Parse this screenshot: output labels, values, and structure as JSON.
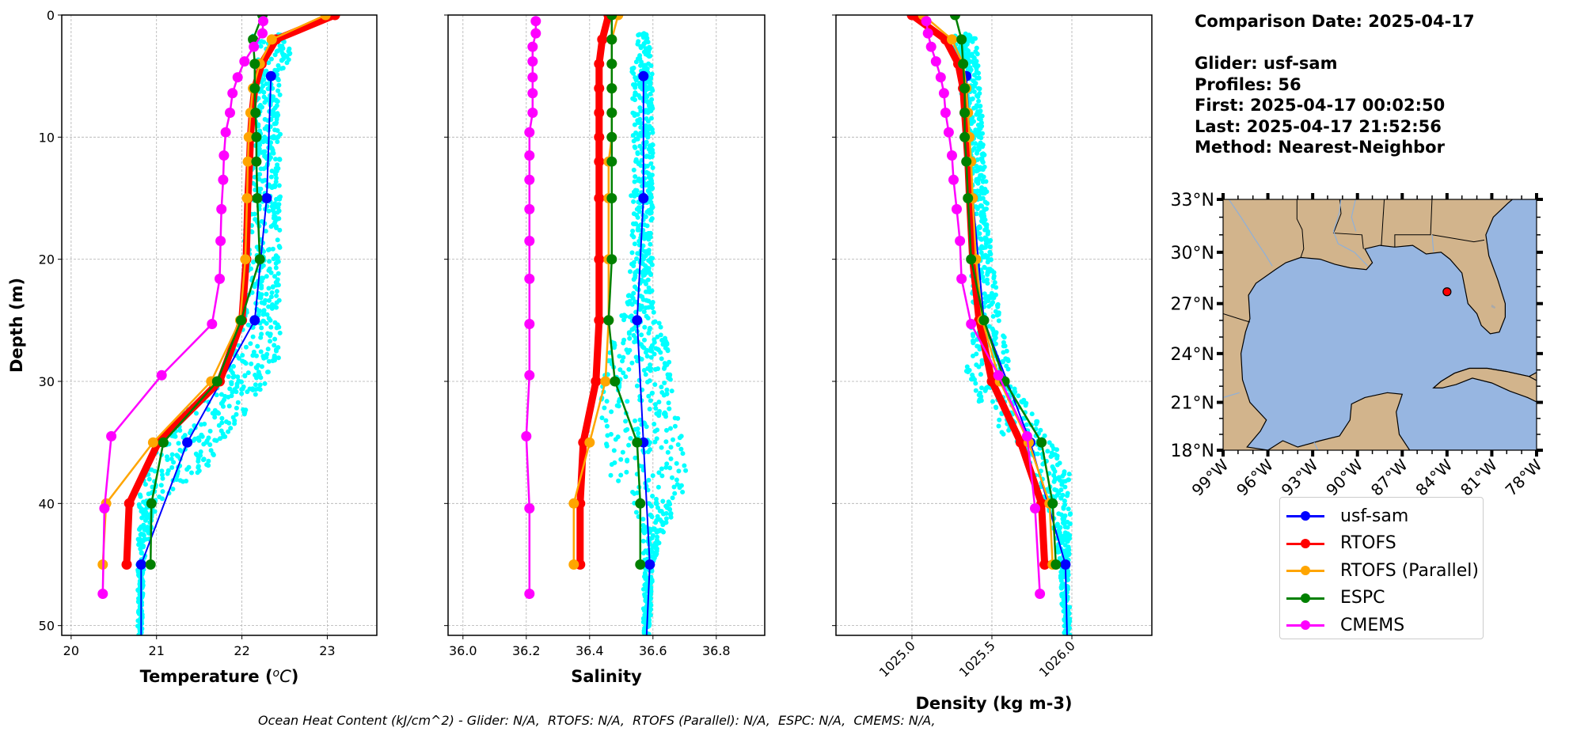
{
  "info": {
    "comparison_date": "Comparison Date: 2025-04-17",
    "glider": "Glider: usf-sam",
    "profiles": "Profiles: 56",
    "first": "First: 2025-04-17 00:02:50",
    "last": "Last: 2025-04-17 21:52:56",
    "method": "Method: Nearest-Neighbor"
  },
  "ohc_text": "Ocean Heat Content (kJ/cm^2) - Glider: N/A,  RTOFS: N/A,  RTOFS (Parallel): N/A,  ESPC: N/A,  CMEMS: N/A,",
  "legend": [
    {
      "name": "usf-sam",
      "color": "#0000ff"
    },
    {
      "name": "RTOFS",
      "color": "#ff0000"
    },
    {
      "name": "RTOFS (Parallel)",
      "color": "#ffa500"
    },
    {
      "name": "ESPC",
      "color": "#008000"
    },
    {
      "name": "CMEMS",
      "color": "#ff00ff"
    }
  ],
  "colors": {
    "glider_scatter": "#00ffff",
    "land": "#d2b48c",
    "ocean": "#97b6e1",
    "glider_location": "#ff0000"
  },
  "chart_data": [
    {
      "type": "line",
      "title": "",
      "xlabel": "Temperature (°C)",
      "ylabel": "Depth (m)",
      "xlim": [
        19.89,
        23.58
      ],
      "ylim": [
        50.8,
        0
      ],
      "xticks": [
        20,
        21,
        22,
        23
      ],
      "xtick_labels": [
        "20",
        "21",
        "22",
        "23"
      ],
      "yticks": [
        0,
        10,
        20,
        30,
        40,
        50
      ],
      "ytick_labels": [
        "0",
        "10",
        "20",
        "30",
        "40",
        "50"
      ],
      "grid": true,
      "model_depths": [
        0,
        2,
        4,
        6,
        8,
        10,
        12,
        15,
        20,
        25,
        30,
        35,
        40,
        45
      ],
      "glider_depths": [
        5,
        15,
        25,
        35,
        45,
        50.8
      ],
      "cmems_depths": [
        0.5,
        1.5,
        2.6,
        3.8,
        5.1,
        6.4,
        8.0,
        9.6,
        11.5,
        13.5,
        15.9,
        18.5,
        21.6,
        25.3,
        29.5,
        34.5,
        40.4,
        47.4
      ],
      "series": [
        {
          "name": "usf-sam",
          "depths": "glider",
          "values": [
            22.34,
            22.29,
            22.15,
            21.36,
            20.82,
            20.82
          ],
          "markers": [
            true,
            true,
            true,
            true,
            true,
            false
          ]
        },
        {
          "name": "RTOFS",
          "depths": "model",
          "values": [
            23.09,
            22.4,
            22.23,
            22.15,
            22.12,
            22.1,
            22.09,
            22.07,
            22.05,
            22.0,
            21.74,
            21.02,
            20.68,
            20.65
          ]
        },
        {
          "name": "RTOFS (Parallel)",
          "depths": "model",
          "values": [
            22.98,
            22.35,
            22.21,
            22.13,
            22.1,
            22.08,
            22.07,
            22.06,
            22.04,
            21.98,
            21.64,
            20.96,
            20.41,
            20.37
          ]
        },
        {
          "name": "ESPC",
          "depths": "model",
          "values": [
            22.24,
            22.13,
            22.15,
            22.15,
            22.16,
            22.17,
            22.17,
            22.18,
            22.21,
            21.99,
            21.71,
            21.08,
            20.94,
            20.93
          ]
        },
        {
          "name": "CMEMS",
          "depths": "cmems",
          "values": [
            22.25,
            22.24,
            22.14,
            22.03,
            21.95,
            21.89,
            21.86,
            21.81,
            21.79,
            21.78,
            21.76,
            21.75,
            21.74,
            21.65,
            21.06,
            20.47,
            20.39,
            20.37
          ]
        }
      ],
      "scatter_envelope": {
        "depths": [
          1.5,
          3,
          5,
          10,
          20,
          25,
          28,
          30,
          32,
          35,
          37,
          40,
          45,
          50.8
        ],
        "min": [
          22.1,
          22.15,
          22.15,
          22.15,
          22.0,
          22.0,
          21.9,
          21.7,
          21.4,
          21.0,
          20.85,
          20.78,
          20.78,
          20.78
        ],
        "max": [
          22.7,
          22.6,
          22.45,
          22.45,
          22.45,
          22.45,
          22.45,
          22.3,
          22.1,
          21.8,
          21.6,
          21.0,
          20.85,
          20.83
        ]
      }
    },
    {
      "type": "line",
      "title": "",
      "xlabel": "Salinity",
      "ylabel": "",
      "xlim": [
        35.953,
        36.953
      ],
      "ylim": [
        50.8,
        0
      ],
      "xticks": [
        36.0,
        36.2,
        36.4,
        36.6,
        36.8
      ],
      "xtick_labels": [
        "36.0",
        "36.2",
        "36.4",
        "36.6",
        "36.8"
      ],
      "yticks": [
        0,
        10,
        20,
        30,
        40,
        50
      ],
      "grid": true,
      "series": [
        {
          "name": "usf-sam",
          "depths": "glider",
          "values": [
            36.57,
            36.57,
            36.55,
            36.57,
            36.59,
            36.58
          ],
          "markers": [
            true,
            true,
            true,
            true,
            true,
            false
          ]
        },
        {
          "name": "RTOFS",
          "depths": "model",
          "values": [
            36.46,
            36.44,
            36.43,
            36.43,
            36.43,
            36.43,
            36.43,
            36.43,
            36.43,
            36.43,
            36.42,
            36.38,
            36.37,
            36.37
          ]
        },
        {
          "name": "RTOFS (Parallel)",
          "depths": "model",
          "values": [
            36.49,
            36.47,
            36.47,
            36.47,
            36.47,
            36.47,
            36.46,
            36.46,
            36.46,
            36.46,
            36.45,
            36.4,
            36.35,
            36.35
          ]
        },
        {
          "name": "ESPC",
          "depths": "model",
          "values": [
            36.47,
            36.47,
            36.47,
            36.47,
            36.47,
            36.47,
            36.47,
            36.47,
            36.47,
            36.46,
            36.48,
            36.55,
            36.56,
            36.56
          ]
        },
        {
          "name": "CMEMS",
          "depths": "cmems",
          "values": [
            36.23,
            36.23,
            36.22,
            36.22,
            36.22,
            36.22,
            36.22,
            36.21,
            36.21,
            36.21,
            36.21,
            36.21,
            36.21,
            36.21,
            36.21,
            36.2,
            36.21,
            36.21
          ]
        }
      ],
      "scatter_envelope": {
        "depths": [
          1.5,
          5,
          10,
          20,
          24,
          26,
          30,
          33,
          36,
          38,
          40,
          42,
          45,
          50.8
        ],
        "min": [
          36.55,
          36.53,
          36.53,
          36.53,
          36.5,
          36.47,
          36.44,
          36.43,
          36.43,
          36.47,
          36.53,
          36.56,
          36.57,
          36.57
        ],
        "max": [
          36.59,
          36.6,
          36.6,
          36.6,
          36.6,
          36.64,
          36.66,
          36.68,
          36.7,
          36.71,
          36.68,
          36.64,
          36.6,
          36.59
        ]
      }
    },
    {
      "type": "line",
      "title": "",
      "xlabel": "Density (kg m-3)",
      "ylabel": "",
      "xlim": [
        1024.525,
        1026.5
      ],
      "ylim": [
        50.8,
        0
      ],
      "xticks": [
        1025.0,
        1025.5,
        1026.0
      ],
      "xtick_labels": [
        "1025.0",
        "1025.5",
        "1026.0"
      ],
      "yticks": [
        0,
        10,
        20,
        30,
        40,
        50
      ],
      "grid": true,
      "series": [
        {
          "name": "usf-sam",
          "depths": "glider",
          "values": [
            1025.34,
            1025.38,
            1025.45,
            1025.74,
            1025.96,
            1025.97
          ],
          "markers": [
            true,
            true,
            true,
            true,
            true,
            false
          ]
        },
        {
          "name": "RTOFS",
          "depths": "model",
          "values": [
            1025.0,
            1025.21,
            1025.29,
            1025.32,
            1025.33,
            1025.34,
            1025.35,
            1025.36,
            1025.38,
            1025.42,
            1025.5,
            1025.68,
            1025.81,
            1025.83
          ]
        },
        {
          "name": "RTOFS (Parallel)",
          "depths": "model",
          "values": [
            1025.07,
            1025.25,
            1025.32,
            1025.34,
            1025.35,
            1025.36,
            1025.37,
            1025.38,
            1025.4,
            1025.44,
            1025.55,
            1025.73,
            1025.86,
            1025.88
          ]
        },
        {
          "name": "ESPC",
          "depths": "model",
          "values": [
            1025.27,
            1025.31,
            1025.32,
            1025.33,
            1025.33,
            1025.33,
            1025.34,
            1025.35,
            1025.37,
            1025.45,
            1025.58,
            1025.81,
            1025.88,
            1025.9
          ]
        },
        {
          "name": "CMEMS",
          "depths": "cmems",
          "values": [
            1025.09,
            1025.1,
            1025.12,
            1025.15,
            1025.18,
            1025.2,
            1025.21,
            1025.23,
            1025.25,
            1025.26,
            1025.28,
            1025.3,
            1025.31,
            1025.37,
            1025.54,
            1025.72,
            1025.77,
            1025.8
          ]
        }
      ],
      "scatter_envelope": {
        "depths": [
          1.5,
          5,
          10,
          15,
          20,
          25,
          28,
          30,
          33,
          35,
          37,
          40,
          45,
          50.8
        ],
        "min": [
          1025.25,
          1025.3,
          1025.33,
          1025.36,
          1025.38,
          1025.35,
          1025.33,
          1025.32,
          1025.5,
          1025.6,
          1025.7,
          1025.84,
          1025.92,
          1025.95
        ],
        "max": [
          1025.4,
          1025.42,
          1025.45,
          1025.47,
          1025.5,
          1025.56,
          1025.6,
          1025.62,
          1025.78,
          1025.88,
          1025.98,
          1026.0,
          1025.98,
          1025.99
        ]
      }
    },
    {
      "type": "map",
      "title": "",
      "lon_range": [
        -99,
        -78
      ],
      "lat_range": [
        18,
        33
      ],
      "xticks": [
        -99,
        -96,
        -93,
        -90,
        -87,
        -84,
        -81,
        -78
      ],
      "xtick_labels": [
        "99°W",
        "96°W",
        "93°W",
        "90°W",
        "87°W",
        "84°W",
        "81°W",
        "78°W"
      ],
      "yticks": [
        18,
        21,
        24,
        27,
        30,
        33
      ],
      "ytick_labels": [
        "18°N",
        "21°N",
        "24°N",
        "27°N",
        "30°N",
        "33°N"
      ],
      "glider_location": {
        "lon": -84.0,
        "lat": 27.7
      }
    }
  ]
}
